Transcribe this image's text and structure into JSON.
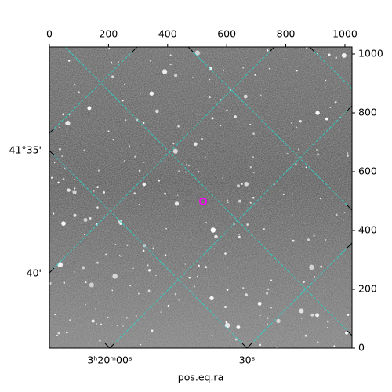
{
  "chart_data": {
    "type": "image",
    "xlabel": "pos.eq.ra",
    "xlim": [
      0,
      1024
    ],
    "ylim": [
      0,
      1024
    ],
    "xticks": [
      0,
      200,
      400,
      600,
      800,
      1000
    ],
    "yticks": [
      0,
      200,
      400,
      600,
      800,
      1000
    ],
    "ra_tick_labels": [
      "3ʰ20ᵐ00ˢ",
      "30ˢ"
    ],
    "dec_tick_labels": [
      "41°35'",
      "40'"
    ],
    "marker": {
      "x": 520,
      "y": 499,
      "color": "#ff00ff"
    },
    "grid": true
  }
}
